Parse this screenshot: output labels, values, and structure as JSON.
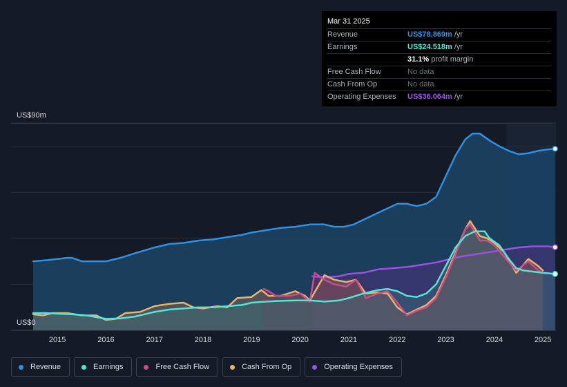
{
  "chart_data": {
    "type": "area",
    "title": "",
    "y_max_label": "US$90m",
    "y_min_label": "US$0",
    "ylim": [
      0,
      90
    ],
    "xlim": [
      2014.5,
      2025.25
    ],
    "forecast_start": 2024.25,
    "x_ticks": [
      "2015",
      "2016",
      "2017",
      "2018",
      "2019",
      "2020",
      "2021",
      "2022",
      "2023",
      "2024",
      "2025"
    ],
    "series": [
      {
        "name": "Revenue",
        "color": "#2f91e4",
        "points": [
          [
            2014.5,
            30
          ],
          [
            2014.8,
            30.5
          ],
          [
            2015.0,
            31
          ],
          [
            2015.2,
            31.5
          ],
          [
            2015.3,
            31.5
          ],
          [
            2015.5,
            30
          ],
          [
            2016.0,
            30
          ],
          [
            2016.3,
            31.5
          ],
          [
            2016.6,
            33.5
          ],
          [
            2017.0,
            36
          ],
          [
            2017.3,
            37.5
          ],
          [
            2017.6,
            38
          ],
          [
            2017.9,
            39
          ],
          [
            2018.2,
            39.5
          ],
          [
            2018.5,
            40.5
          ],
          [
            2018.8,
            41.5
          ],
          [
            2019.0,
            42.5
          ],
          [
            2019.3,
            43.5
          ],
          [
            2019.6,
            44.5
          ],
          [
            2019.9,
            45
          ],
          [
            2020.2,
            46
          ],
          [
            2020.5,
            46
          ],
          [
            2020.7,
            45
          ],
          [
            2020.9,
            45
          ],
          [
            2021.1,
            46
          ],
          [
            2021.4,
            49
          ],
          [
            2021.7,
            52
          ],
          [
            2022.0,
            55
          ],
          [
            2022.2,
            55
          ],
          [
            2022.4,
            54
          ],
          [
            2022.6,
            55
          ],
          [
            2022.8,
            58
          ],
          [
            2023.0,
            67
          ],
          [
            2023.2,
            76
          ],
          [
            2023.4,
            83
          ],
          [
            2023.55,
            85.5
          ],
          [
            2023.7,
            85.5
          ],
          [
            2023.9,
            82.5
          ],
          [
            2024.1,
            80
          ],
          [
            2024.3,
            78
          ],
          [
            2024.5,
            76.5
          ],
          [
            2024.7,
            77
          ],
          [
            2024.9,
            78
          ],
          [
            2025.1,
            78.6
          ],
          [
            2025.25,
            78.9
          ]
        ]
      },
      {
        "name": "Earnings",
        "color": "#54e5d6",
        "points": [
          [
            2014.5,
            7.5
          ],
          [
            2014.8,
            7.5
          ],
          [
            2015.0,
            7.2
          ],
          [
            2015.3,
            7
          ],
          [
            2015.6,
            6.5
          ],
          [
            2016.0,
            5
          ],
          [
            2016.3,
            5.2
          ],
          [
            2016.6,
            6
          ],
          [
            2016.8,
            7
          ],
          [
            2017.0,
            8
          ],
          [
            2017.3,
            9
          ],
          [
            2017.6,
            9.5
          ],
          [
            2017.9,
            10
          ],
          [
            2018.2,
            10
          ],
          [
            2018.5,
            10.5
          ],
          [
            2018.8,
            11
          ],
          [
            2019.0,
            12
          ],
          [
            2019.3,
            12.5
          ],
          [
            2019.6,
            12.8
          ],
          [
            2019.9,
            13
          ],
          [
            2020.2,
            13
          ],
          [
            2020.5,
            12.5
          ],
          [
            2020.8,
            13
          ],
          [
            2021.0,
            14
          ],
          [
            2021.3,
            16
          ],
          [
            2021.6,
            17.5
          ],
          [
            2021.8,
            18
          ],
          [
            2022.0,
            17
          ],
          [
            2022.2,
            15
          ],
          [
            2022.4,
            14.5
          ],
          [
            2022.6,
            16
          ],
          [
            2022.8,
            20
          ],
          [
            2023.0,
            28
          ],
          [
            2023.2,
            36
          ],
          [
            2023.4,
            41
          ],
          [
            2023.6,
            43
          ],
          [
            2023.8,
            43
          ],
          [
            2023.9,
            40
          ],
          [
            2024.1,
            37
          ],
          [
            2024.3,
            31
          ],
          [
            2024.45,
            27
          ],
          [
            2024.6,
            26
          ],
          [
            2024.8,
            25.5
          ],
          [
            2025.0,
            25
          ],
          [
            2025.25,
            24.5
          ]
        ]
      },
      {
        "name": "Free Cash Flow",
        "color": "#c94f86",
        "points": [
          [
            2019.25,
            18
          ],
          [
            2019.35,
            17
          ],
          [
            2019.5,
            15
          ],
          [
            2019.8,
            15
          ],
          [
            2020.0,
            16
          ],
          [
            2020.2,
            12.5
          ],
          [
            2020.3,
            25
          ],
          [
            2020.5,
            22
          ],
          [
            2020.7,
            20
          ],
          [
            2020.95,
            19
          ],
          [
            2021.15,
            22
          ],
          [
            2021.35,
            14
          ],
          [
            2021.6,
            16
          ],
          [
            2021.8,
            17
          ],
          [
            2022.0,
            12
          ],
          [
            2022.2,
            6.5
          ],
          [
            2022.4,
            8.5
          ],
          [
            2022.6,
            10
          ],
          [
            2022.8,
            14
          ],
          [
            2023.0,
            23
          ],
          [
            2023.2,
            33
          ],
          [
            2023.4,
            44
          ],
          [
            2023.5,
            46
          ],
          [
            2023.7,
            39
          ],
          [
            2023.85,
            39
          ],
          [
            2024.0,
            37
          ],
          [
            2024.2,
            32
          ],
          [
            2024.45,
            26
          ],
          [
            2024.7,
            30
          ],
          [
            2024.9,
            26
          ],
          [
            2025.0,
            25
          ]
        ]
      },
      {
        "name": "Cash From Op",
        "color": "#e8b46c",
        "points": [
          [
            2014.5,
            7
          ],
          [
            2014.7,
            6.5
          ],
          [
            2014.9,
            7.5
          ],
          [
            2015.2,
            7.5
          ],
          [
            2015.5,
            6.5
          ],
          [
            2015.8,
            6.5
          ],
          [
            2016.0,
            4.5
          ],
          [
            2016.2,
            5
          ],
          [
            2016.4,
            7.5
          ],
          [
            2016.7,
            8
          ],
          [
            2017.0,
            10.5
          ],
          [
            2017.3,
            11.5
          ],
          [
            2017.6,
            12
          ],
          [
            2017.8,
            10
          ],
          [
            2018.0,
            9.5
          ],
          [
            2018.3,
            10.5
          ],
          [
            2018.5,
            10
          ],
          [
            2018.7,
            14
          ],
          [
            2019.0,
            14.5
          ],
          [
            2019.2,
            17.5
          ],
          [
            2019.35,
            15
          ],
          [
            2019.6,
            15
          ],
          [
            2019.9,
            17
          ],
          [
            2020.1,
            15
          ],
          [
            2020.2,
            13
          ],
          [
            2020.5,
            24
          ],
          [
            2020.7,
            22
          ],
          [
            2020.95,
            21
          ],
          [
            2021.15,
            22
          ],
          [
            2021.35,
            16
          ],
          [
            2021.6,
            16.5
          ],
          [
            2021.8,
            16
          ],
          [
            2022.0,
            10
          ],
          [
            2022.2,
            7
          ],
          [
            2022.4,
            9
          ],
          [
            2022.6,
            11
          ],
          [
            2022.8,
            15
          ],
          [
            2023.0,
            24
          ],
          [
            2023.2,
            34
          ],
          [
            2023.4,
            44
          ],
          [
            2023.5,
            47.5
          ],
          [
            2023.7,
            41
          ],
          [
            2023.85,
            40
          ],
          [
            2024.0,
            38
          ],
          [
            2024.2,
            34
          ],
          [
            2024.45,
            25
          ],
          [
            2024.7,
            31
          ],
          [
            2024.9,
            28
          ],
          [
            2025.0,
            26
          ]
        ]
      },
      {
        "name": "Operating Expenses",
        "color": "#9a52e0",
        "points": [
          [
            2020.25,
            23.5
          ],
          [
            2020.5,
            23
          ],
          [
            2020.8,
            23.5
          ],
          [
            2021.0,
            24.5
          ],
          [
            2021.3,
            25
          ],
          [
            2021.6,
            26.5
          ],
          [
            2021.9,
            27
          ],
          [
            2022.2,
            27.5
          ],
          [
            2022.5,
            28.5
          ],
          [
            2022.8,
            29.5
          ],
          [
            2023.0,
            30.5
          ],
          [
            2023.3,
            32
          ],
          [
            2023.6,
            33
          ],
          [
            2023.9,
            34
          ],
          [
            2024.2,
            35
          ],
          [
            2024.5,
            36
          ],
          [
            2024.8,
            36.5
          ],
          [
            2025.1,
            36.5
          ],
          [
            2025.25,
            36.1
          ]
        ]
      }
    ]
  },
  "tooltip": {
    "date": "Mar 31 2025",
    "rows": [
      {
        "label": "Revenue",
        "value": "US$78.869m",
        "unit": "/yr",
        "color": "#2f91e4"
      },
      {
        "label": "Earnings",
        "value": "US$24.518m",
        "unit": "/yr",
        "color": "#54e5d6"
      },
      {
        "label": "",
        "value": "31.1%",
        "unit": "profit margin",
        "color": "#ffffff"
      },
      {
        "label": "Free Cash Flow",
        "value": "No data",
        "unit": "",
        "color": "muted"
      },
      {
        "label": "Cash From Op",
        "value": "No data",
        "unit": "",
        "color": "muted"
      },
      {
        "label": "Operating Expenses",
        "value": "US$36.064m",
        "unit": "/yr",
        "color": "#9a52e0"
      }
    ]
  },
  "legend": [
    {
      "label": "Revenue",
      "color": "#2f91e4"
    },
    {
      "label": "Earnings",
      "color": "#54e5d6"
    },
    {
      "label": "Free Cash Flow",
      "color": "#c94f86"
    },
    {
      "label": "Cash From Op",
      "color": "#e8b46c"
    },
    {
      "label": "Operating Expenses",
      "color": "#9a52e0"
    }
  ]
}
